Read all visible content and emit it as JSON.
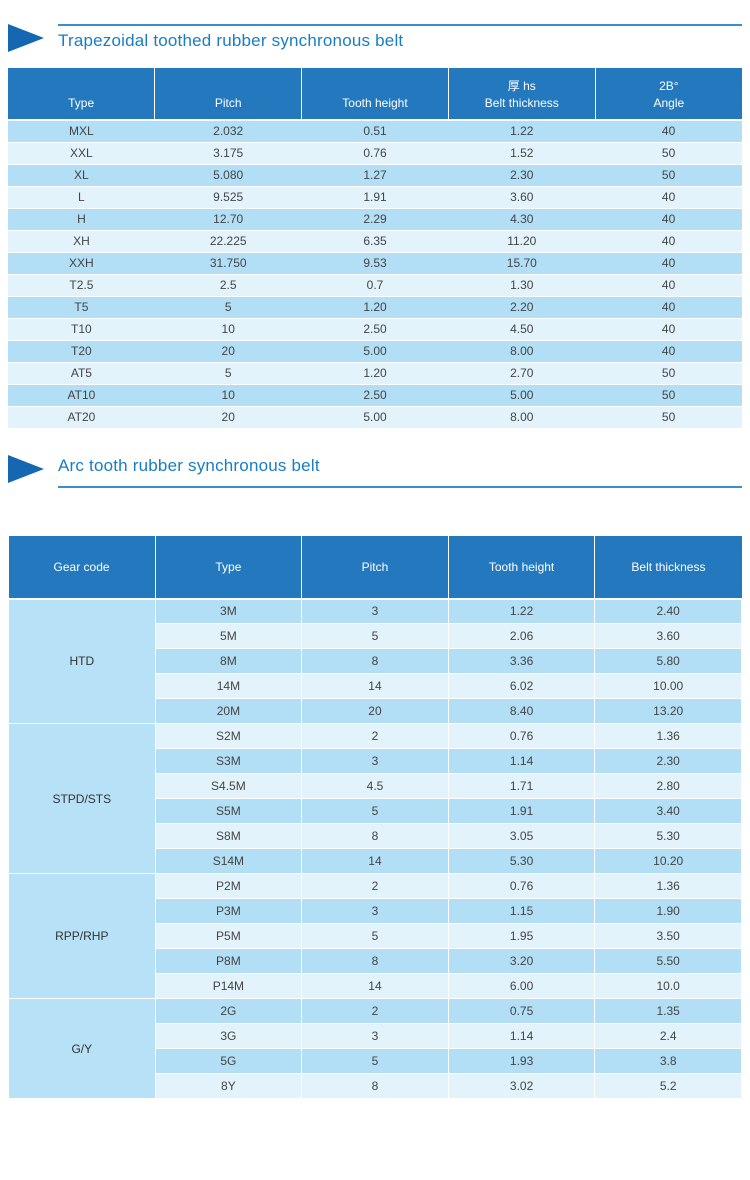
{
  "page": {
    "sections": [
      {
        "title": "Trapezoidal toothed rubber synchronous belt",
        "table": {
          "headers": [
            {
              "top": "",
              "label": "Type"
            },
            {
              "top": "",
              "label": "Pitch"
            },
            {
              "top": "",
              "label": "Tooth height"
            },
            {
              "top": "厚 hs",
              "label": "Belt thickness"
            },
            {
              "top": "2B°",
              "label": "Angle"
            }
          ],
          "rows": [
            [
              "MXL",
              "2.032",
              "0.51",
              "1.22",
              "40"
            ],
            [
              "XXL",
              "3.175",
              "0.76",
              "1.52",
              "50"
            ],
            [
              "XL",
              "5.080",
              "1.27",
              "2.30",
              "50"
            ],
            [
              "L",
              "9.525",
              "1.91",
              "3.60",
              "40"
            ],
            [
              "H",
              "12.70",
              "2.29",
              "4.30",
              "40"
            ],
            [
              "XH",
              "22.225",
              "6.35",
              "11.20",
              "40"
            ],
            [
              "XXH",
              "31.750",
              "9.53",
              "15.70",
              "40"
            ],
            [
              "T2.5",
              "2.5",
              "0.7",
              "1.30",
              "40"
            ],
            [
              "T5",
              "5",
              "1.20",
              "2.20",
              "40"
            ],
            [
              "T10",
              "10",
              "2.50",
              "4.50",
              "40"
            ],
            [
              "T20",
              "20",
              "5.00",
              "8.00",
              "40"
            ],
            [
              "AT5",
              "5",
              "1.20",
              "2.70",
              "50"
            ],
            [
              "AT10",
              "10",
              "2.50",
              "5.00",
              "50"
            ],
            [
              "AT20",
              "20",
              "5.00",
              "8.00",
              "50"
            ]
          ]
        }
      },
      {
        "title": "Arc tooth rubber synchronous belt",
        "table": {
          "headers": [
            "Gear code",
            "Type",
            "Pitch",
            "Tooth height",
            "Belt thickness"
          ],
          "groups": [
            {
              "code": "HTD",
              "rows": [
                [
                  "3M",
                  "3",
                  "1.22",
                  "2.40"
                ],
                [
                  "5M",
                  "5",
                  "2.06",
                  "3.60"
                ],
                [
                  "8M",
                  "8",
                  "3.36",
                  "5.80"
                ],
                [
                  "14M",
                  "14",
                  "6.02",
                  "10.00"
                ],
                [
                  "20M",
                  "20",
                  "8.40",
                  "13.20"
                ]
              ]
            },
            {
              "code": "STPD/STS",
              "rows": [
                [
                  "S2M",
                  "2",
                  "0.76",
                  "1.36"
                ],
                [
                  "S3M",
                  "3",
                  "1.14",
                  "2.30"
                ],
                [
                  "S4.5M",
                  "4.5",
                  "1.71",
                  "2.80"
                ],
                [
                  "S5M",
                  "5",
                  "1.91",
                  "3.40"
                ],
                [
                  "S8M",
                  "8",
                  "3.05",
                  "5.30"
                ],
                [
                  "S14M",
                  "14",
                  "5.30",
                  "10.20"
                ]
              ]
            },
            {
              "code": "RPP/RHP",
              "rows": [
                [
                  "P2M",
                  "2",
                  "0.76",
                  "1.36"
                ],
                [
                  "P3M",
                  "3",
                  "1.15",
                  "1.90"
                ],
                [
                  "P5M",
                  "5",
                  "1.95",
                  "3.50"
                ],
                [
                  "P8M",
                  "8",
                  "3.20",
                  "5.50"
                ],
                [
                  "P14M",
                  "14",
                  "6.00",
                  "10.0"
                ]
              ]
            },
            {
              "code": "G/Y",
              "rows": [
                [
                  "2G",
                  "2",
                  "0.75",
                  "1.35"
                ],
                [
                  "3G",
                  "3",
                  "1.14",
                  "2.4"
                ],
                [
                  "5G",
                  "5",
                  "1.93",
                  "3.8"
                ],
                [
                  "8Y",
                  "8",
                  "3.02",
                  "5.2"
                ]
              ]
            }
          ]
        }
      }
    ]
  },
  "colors": {
    "header_bg": "#2478be",
    "row_medium": "#b2dff5",
    "row_light": "#e3f3fc",
    "group_bg": "#b7e1f6",
    "title": "#187dc4",
    "triangle": "#1667b1",
    "line": "#3c8dcb"
  }
}
